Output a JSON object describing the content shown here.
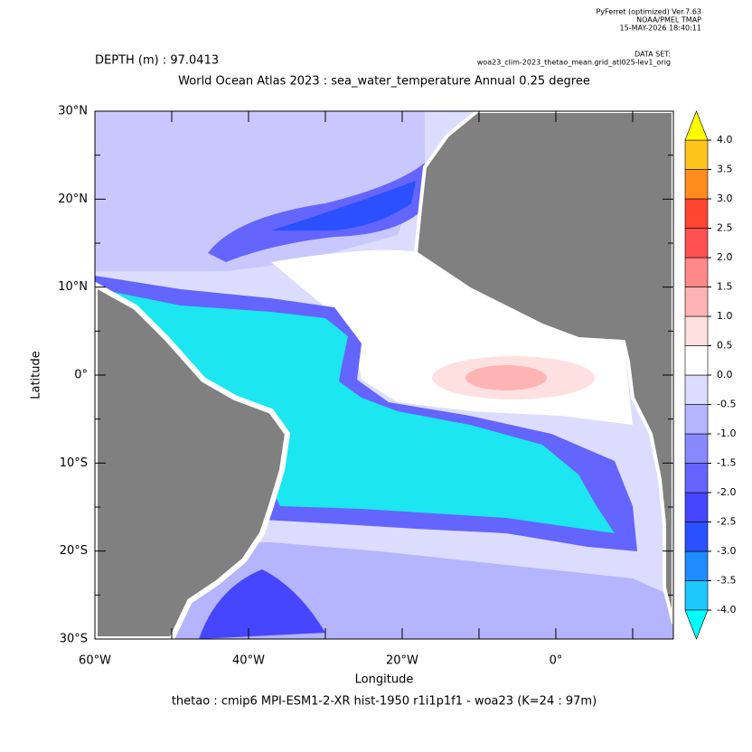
{
  "chart_data": {
    "type": "map",
    "program": [
      "PyFerret (optimized) Ver.7.63",
      "NOAA/PMEL TMAP",
      "15-MAY-2026 18:40:11"
    ],
    "dataset": [
      "DATA SET:",
      "woa23_clim-2023_thetao_mean.grid_atl025-lev1_orig"
    ],
    "depth_label": "DEPTH (m) : 97.0413",
    "title": "World Ocean Atlas 2023 : sea_water_temperature Annual  0.25 degree",
    "footer": "thetao : cmip6 MPI-ESM1-2-XR hist-1950 r1i1p1f1 - woa23  (K=24 : 97m)",
    "xlabel": "Longitude",
    "ylabel": "Latitude",
    "xlim": [
      -60,
      15.3
    ],
    "ylim": [
      -30,
      30
    ],
    "xticks": [
      {
        "value": -60,
        "label": "60°W"
      },
      {
        "value": -40,
        "label": "40°W"
      },
      {
        "value": -20,
        "label": "20°W"
      },
      {
        "value": 0,
        "label": "0°"
      }
    ],
    "xminor": [
      -50,
      -30,
      -10,
      10
    ],
    "yticks": [
      {
        "value": 30,
        "label": "30°N"
      },
      {
        "value": 20,
        "label": "20°N"
      },
      {
        "value": 10,
        "label": "10°N"
      },
      {
        "value": 0,
        "label": "0°"
      },
      {
        "value": -10,
        "label": "10°S"
      },
      {
        "value": -20,
        "label": "20°S"
      },
      {
        "value": -30,
        "label": "30°S"
      }
    ],
    "yminor": [
      25,
      15,
      5,
      -5,
      -15,
      -25
    ],
    "colorbar": {
      "levels": [
        {
          "value": -4,
          "label": "-4.0"
        },
        {
          "value": -3.5,
          "label": "-3.5"
        },
        {
          "value": -3,
          "label": "-3.0"
        },
        {
          "value": -2.5,
          "label": "-2.5"
        },
        {
          "value": -2,
          "label": "-2.0"
        },
        {
          "value": -1.5,
          "label": "-1.5"
        },
        {
          "value": -1,
          "label": "-1.0"
        },
        {
          "value": -0.5,
          "label": "-0.5"
        },
        {
          "value": 0,
          "label": "0.0"
        },
        {
          "value": 0.5,
          "label": "0.5"
        },
        {
          "value": 1,
          "label": "1.0"
        },
        {
          "value": 1.5,
          "label": "1.5"
        },
        {
          "value": 2,
          "label": "2.0"
        },
        {
          "value": 2.5,
          "label": "2.5"
        },
        {
          "value": 3,
          "label": "3.0"
        },
        {
          "value": 3.5,
          "label": "3.5"
        },
        {
          "value": 4,
          "label": "4.0"
        }
      ],
      "colors": [
        "#1ec8ff",
        "#1e8cff",
        "#2a50ff",
        "#4646ff",
        "#6464ff",
        "#8888ff",
        "#b4b4ff",
        "#dcdcff",
        "#ffffff",
        "#ffe0e0",
        "#ffb4b4",
        "#ff8888",
        "#ff5050",
        "#ff4630",
        "#ff8c1e",
        "#ffc31e"
      ],
      "under_color": "#00ffff",
      "over_color": "#ffff00"
    }
  }
}
